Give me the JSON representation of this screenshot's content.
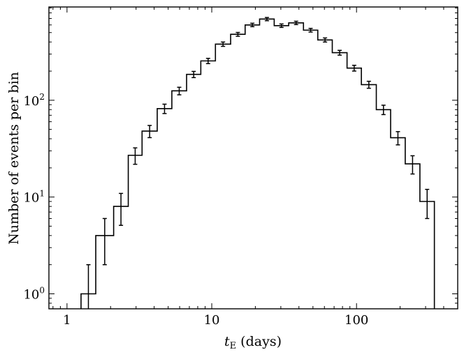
{
  "chart_data": {
    "type": "step-histogram",
    "title": "",
    "xlabel": "t_E (days)",
    "xlabel_parts": {
      "main": "t",
      "subscript": "E",
      "rest": " (days)"
    },
    "ylabel": "Number of events per bin",
    "xscale": "log",
    "yscale": "log",
    "xlim": [
      0.75,
      500
    ],
    "ylim": [
      0.7,
      920
    ],
    "grid": false,
    "x_ticks": [
      {
        "value": 1,
        "label": "1"
      },
      {
        "value": 10,
        "label": "10"
      },
      {
        "value": 100,
        "label": "100"
      }
    ],
    "y_ticks": [
      {
        "value": 1,
        "base": "10",
        "exp": "0"
      },
      {
        "value": 10,
        "base": "10",
        "exp": "1"
      },
      {
        "value": 100,
        "base": "10",
        "exp": "2"
      }
    ],
    "bin_edges": [
      1.25,
      1.58,
      2.1,
      2.65,
      3.3,
      4.2,
      5.3,
      6.7,
      8.4,
      10.6,
      13.5,
      17.0,
      21.4,
      27.0,
      34.0,
      43.0,
      54.0,
      68.0,
      86.0,
      108.0,
      137.0,
      172.0,
      217.0,
      274.0,
      345.0
    ],
    "counts": [
      1,
      4,
      8,
      27,
      48,
      82,
      125,
      185,
      255,
      380,
      480,
      600,
      690,
      590,
      630,
      530,
      420,
      310,
      215,
      145,
      80,
      41,
      22,
      9
    ],
    "errors": [
      1,
      2,
      2.9,
      5.2,
      6.9,
      9.1,
      11.2,
      13.6,
      16,
      19.5,
      21.9,
      24.5,
      26.3,
      24.3,
      25.1,
      23,
      20.5,
      17.6,
      14.7,
      12,
      8.9,
      6.4,
      4.7,
      3
    ],
    "color": "#000000"
  }
}
